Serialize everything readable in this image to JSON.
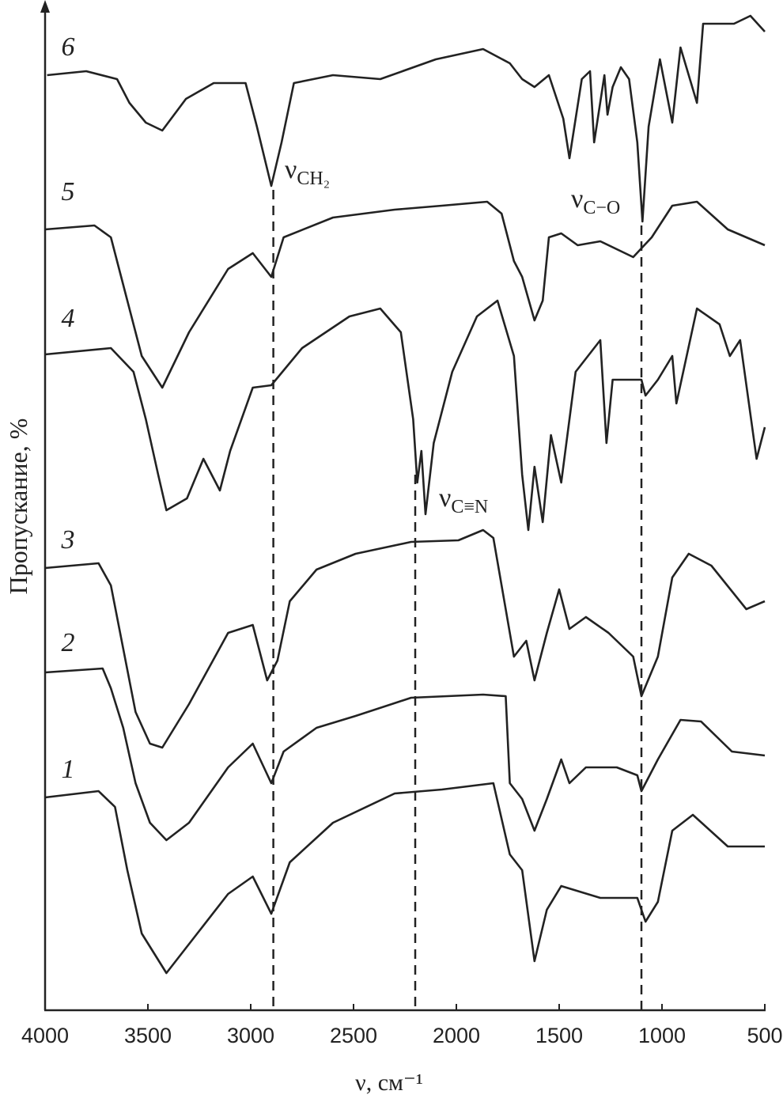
{
  "chart_data": {
    "type": "line",
    "xlabel": "ν, см⁻¹",
    "ylabel": "Пропускание, %",
    "xlim": [
      4000,
      500
    ],
    "xticks": [
      4000,
      3500,
      3000,
      2500,
      2000,
      1500,
      1000,
      500
    ],
    "ylim": [
      0,
      126.7
    ],
    "color": "#222222",
    "series": [
      {
        "name": "6",
        "x": [
          3990,
          3800,
          3650,
          3590,
          3510,
          3430,
          3315,
          3180,
          3025,
          2970,
          2900,
          2850,
          2790,
          2600,
          2370,
          2100,
          1870,
          1740,
          1680,
          1620,
          1550,
          1480,
          1450,
          1390,
          1350,
          1330,
          1280,
          1265,
          1240,
          1200,
          1160,
          1120,
          1095,
          1065,
          1010,
          950,
          910,
          830,
          800,
          650,
          570,
          500
        ],
        "values": [
          118.2,
          118.7,
          117.7,
          114.7,
          112.2,
          111.2,
          115.2,
          117.2,
          117.2,
          111.7,
          104.2,
          109.7,
          117.2,
          118.2,
          117.7,
          120.2,
          121.5,
          119.7,
          117.7,
          116.7,
          118.2,
          112.7,
          107.7,
          117.7,
          118.7,
          109.7,
          118.2,
          113.2,
          116.7,
          119.2,
          117.7,
          109.7,
          99.7,
          111.7,
          120.2,
          112.2,
          121.7,
          114.7,
          124.7,
          124.7,
          125.7,
          123.7
        ]
      },
      {
        "name": "5",
        "x": [
          4000,
          3760,
          3680,
          3600,
          3530,
          3430,
          3300,
          3110,
          2990,
          2900,
          2840,
          2600,
          2300,
          2070,
          1850,
          1780,
          1720,
          1680,
          1620,
          1580,
          1550,
          1490,
          1410,
          1300,
          1140,
          1050,
          950,
          830,
          680,
          500
        ],
        "values": [
          98.7,
          99.2,
          97.7,
          89.7,
          82.7,
          78.7,
          85.7,
          93.7,
          95.7,
          92.7,
          97.7,
          100.2,
          101.2,
          101.7,
          102.2,
          100.7,
          94.7,
          92.7,
          87.2,
          89.7,
          97.7,
          98.2,
          96.7,
          97.2,
          95.2,
          97.7,
          101.7,
          102.2,
          98.7,
          96.7
        ]
      },
      {
        "name": "4",
        "x": [
          4000,
          3680,
          3570,
          3510,
          3450,
          3410,
          3310,
          3230,
          3190,
          3150,
          3100,
          2990,
          2900,
          2750,
          2520,
          2370,
          2270,
          2210,
          2190,
          2170,
          2150,
          2110,
          2020,
          1900,
          1800,
          1720,
          1680,
          1650,
          1620,
          1580,
          1540,
          1490,
          1420,
          1300,
          1270,
          1240,
          1100,
          1080,
          1020,
          950,
          930,
          830,
          720,
          670,
          620,
          540,
          500
        ],
        "values": [
          82.9,
          83.7,
          80.7,
          74.7,
          67.7,
          63.2,
          64.7,
          69.7,
          67.7,
          65.7,
          70.7,
          78.7,
          79.0,
          83.7,
          87.7,
          88.7,
          85.7,
          74.7,
          66.7,
          70.7,
          62.7,
          71.7,
          80.7,
          87.7,
          89.7,
          82.7,
          67.7,
          60.7,
          68.7,
          61.7,
          72.7,
          66.7,
          80.7,
          84.7,
          71.7,
          79.7,
          79.7,
          77.7,
          79.7,
          82.7,
          76.7,
          88.7,
          86.7,
          82.7,
          84.7,
          69.7,
          73.7
        ]
      },
      {
        "name": "3",
        "x": [
          4000,
          3740,
          3680,
          3620,
          3560,
          3490,
          3430,
          3300,
          3110,
          2990,
          2920,
          2870,
          2810,
          2680,
          2490,
          2220,
          1990,
          1870,
          1820,
          1760,
          1720,
          1660,
          1620,
          1560,
          1500,
          1450,
          1370,
          1260,
          1140,
          1100,
          1020,
          950,
          870,
          760,
          590,
          500
        ],
        "values": [
          55.9,
          56.5,
          53.7,
          45.7,
          37.7,
          33.7,
          33.2,
          38.7,
          47.7,
          48.7,
          41.7,
          44.2,
          51.7,
          55.7,
          57.7,
          59.2,
          59.4,
          60.7,
          59.7,
          50.7,
          44.7,
          46.7,
          41.7,
          47.7,
          53.2,
          48.2,
          49.7,
          47.7,
          44.7,
          39.7,
          44.7,
          54.7,
          57.7,
          56.2,
          50.7,
          51.7
        ]
      },
      {
        "name": "2",
        "x": [
          4000,
          3720,
          3680,
          3620,
          3560,
          3490,
          3410,
          3300,
          3110,
          2990,
          2900,
          2840,
          2680,
          2490,
          2220,
          1870,
          1760,
          1740,
          1680,
          1620,
          1560,
          1490,
          1450,
          1370,
          1220,
          1120,
          1100,
          1020,
          910,
          810,
          660,
          500
        ],
        "values": [
          42.7,
          43.2,
          40.7,
          35.7,
          28.7,
          23.7,
          21.5,
          23.7,
          30.7,
          33.7,
          28.7,
          32.7,
          35.7,
          37.2,
          39.5,
          39.9,
          39.7,
          28.7,
          26.7,
          22.7,
          26.7,
          31.7,
          28.7,
          30.7,
          30.7,
          29.7,
          27.7,
          31.7,
          36.7,
          36.5,
          32.7,
          32.2
        ]
      },
      {
        "name": "1",
        "x": [
          4000,
          3740,
          3660,
          3600,
          3530,
          3410,
          3290,
          3110,
          2990,
          2900,
          2810,
          2600,
          2300,
          2070,
          1820,
          1740,
          1680,
          1620,
          1560,
          1490,
          1300,
          1120,
          1080,
          1020,
          950,
          850,
          680,
          500
        ],
        "values": [
          26.9,
          27.7,
          25.7,
          17.7,
          9.7,
          4.7,
          8.7,
          14.7,
          16.9,
          12.2,
          18.7,
          23.7,
          27.4,
          27.9,
          28.7,
          19.7,
          17.7,
          6.2,
          12.7,
          15.7,
          14.2,
          14.2,
          11.2,
          13.7,
          22.7,
          24.7,
          20.7,
          20.7
        ]
      }
    ],
    "vlines": [
      {
        "x": 2890,
        "top": 103.7
      },
      {
        "x": 2200,
        "top": 67.7
      },
      {
        "x": 1100,
        "top": 99.2
      }
    ],
    "annotations": [
      {
        "text": "ν",
        "sub": "CH₂"
      },
      {
        "text": "ν",
        "sub": "C≡N"
      },
      {
        "text": "ν",
        "sub": "C−O"
      }
    ]
  }
}
